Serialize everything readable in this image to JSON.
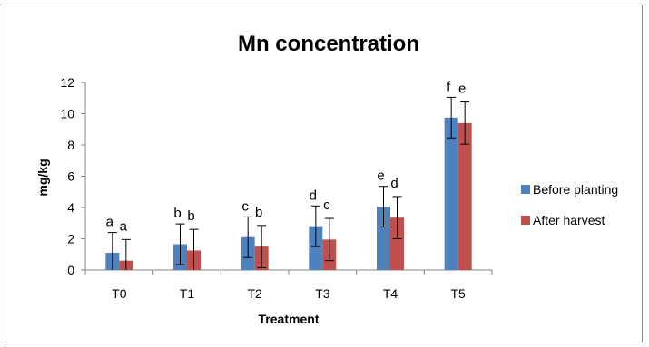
{
  "chart_data": {
    "type": "bar",
    "title": "Mn concentration",
    "xlabel": "Treatment",
    "ylabel": "mg/kg",
    "ylim": [
      0,
      12
    ],
    "yticks": [
      0,
      2,
      4,
      6,
      8,
      10,
      12
    ],
    "categories": [
      "T0",
      "T1",
      "T2",
      "T3",
      "T4",
      "T5"
    ],
    "series": [
      {
        "name": "Before planting",
        "color": "#4f81bd",
        "values": [
          1.1,
          1.65,
          2.1,
          2.8,
          4.05,
          9.75
        ],
        "errors": [
          1.3,
          1.3,
          1.3,
          1.3,
          1.3,
          1.3
        ],
        "letters": [
          "a",
          "b",
          "c",
          "d",
          "e",
          "f"
        ]
      },
      {
        "name": "After harvest",
        "color": "#c0504d",
        "values": [
          0.6,
          1.25,
          1.5,
          1.95,
          3.35,
          9.4
        ],
        "errors": [
          1.35,
          1.35,
          1.35,
          1.35,
          1.35,
          1.35
        ],
        "letters": [
          "a",
          "b",
          "b",
          "c",
          "d",
          "e"
        ]
      }
    ],
    "legend": "right",
    "grid": false,
    "error_bars": true
  }
}
